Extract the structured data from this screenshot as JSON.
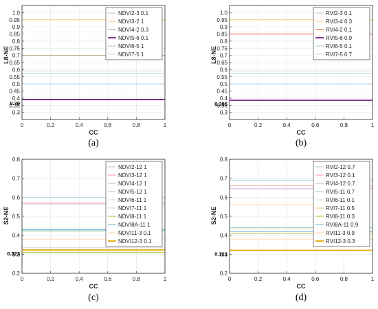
{
  "figure_captions": [
    "(a)",
    "(b)",
    "(c)",
    "(d)"
  ],
  "chart_data": [
    {
      "type": "line",
      "caption": "(a)",
      "xlabel": "CC",
      "ylabel": "L8-NE",
      "xlim": [
        0,
        1
      ],
      "ylim": [
        0.25,
        1.05
      ],
      "xticks": [
        "0",
        "0.2",
        "0.4",
        "0.6",
        "0.8",
        "1"
      ],
      "yticks": [
        "0.3",
        "0.35",
        "0.4",
        "0.45",
        "0.5",
        "0.55",
        "0.6",
        "0.65",
        "0.7",
        "0.75",
        "0.8",
        "0.85",
        "0.9",
        "0.95",
        "1.0"
      ],
      "grid": true,
      "legend_position": "top-right",
      "highlight": {
        "value": 0.39,
        "label": "0.39"
      },
      "series": [
        {
          "name": "NDVI2-3 0.1",
          "y": 0.57,
          "color": "#a6cee3"
        },
        {
          "name": "NDVI3-2 1",
          "y": 0.95,
          "color": "#fdbf6f"
        },
        {
          "name": "NDVI4-2 0.3",
          "y": 0.7,
          "color": "#b4a07a"
        },
        {
          "name": "NDVI5-6 0.1",
          "y": 0.39,
          "color": "#7a1f8c",
          "bold": true
        },
        {
          "name": "NDVI6-5 1",
          "y": 0.5,
          "color": "#9ecae1"
        },
        {
          "name": "NDVI7-5 1",
          "y": 0.59,
          "color": "#c6dbef"
        }
      ]
    },
    {
      "type": "line",
      "caption": "(b)",
      "xlabel": "CC",
      "ylabel": "L8-NE",
      "xlim": [
        0,
        1
      ],
      "ylim": [
        0.25,
        1.05
      ],
      "xticks": [
        "0",
        "0.2",
        "0.4",
        "0.6",
        "0.8",
        "1"
      ],
      "yticks": [
        "0.3",
        "0.35",
        "0.4",
        "0.45",
        "0.5",
        "0.55",
        "0.6",
        "0.65",
        "0.7",
        "0.75",
        "0.8",
        "0.85",
        "0.9",
        "0.95",
        "1.0"
      ],
      "grid": true,
      "legend_position": "top-right",
      "highlight": {
        "value": 0.385,
        "label": "0.385"
      },
      "series": [
        {
          "name": "RVI2-3 0.1",
          "y": 0.57,
          "color": "#a6cee3"
        },
        {
          "name": "RVI3-4 0.3",
          "y": 0.95,
          "color": "#fdbf6f"
        },
        {
          "name": "RVI4-2 0.1",
          "y": 0.85,
          "color": "#e6550d"
        },
        {
          "name": "RVI5-6 0.9",
          "y": 0.385,
          "color": "#7a1f8c",
          "bold": true
        },
        {
          "name": "RVI6-5 0.1",
          "y": 0.5,
          "color": "#9ecae1"
        },
        {
          "name": "RVI7-5 0.7",
          "y": 0.59,
          "color": "#c6dbef"
        }
      ]
    },
    {
      "type": "line",
      "caption": "(c)",
      "xlabel": "CC",
      "ylabel": "S2-NE",
      "xlim": [
        0,
        1
      ],
      "ylim": [
        0.2,
        0.8
      ],
      "xticks": [
        "0",
        "0.2",
        "0.4",
        "0.6",
        "0.8",
        "1"
      ],
      "yticks": [
        "0.2",
        "0.3",
        "0.4",
        "0.5",
        "0.6",
        "0.7",
        "0.8"
      ],
      "grid": true,
      "legend_position": "top-right",
      "highlight": {
        "value": 0.323,
        "label": "0.323"
      },
      "series": [
        {
          "name": "NDVI2-12 1",
          "y": 0.6,
          "color": "#a6cee3"
        },
        {
          "name": "NDVI3-12 1",
          "y": 0.57,
          "color": "#fb9a99"
        },
        {
          "name": "NDVI4-12 1",
          "y": 0.565,
          "color": "#cab2d6"
        },
        {
          "name": "NDVI5-12 1",
          "y": 0.425,
          "color": "#9ecae1"
        },
        {
          "name": "NDVI6-11 1",
          "y": 0.42,
          "color": "#c7e9c0"
        },
        {
          "name": "NDVI7-11 1",
          "y": 0.335,
          "color": "#d9d9d9"
        },
        {
          "name": "NDVI8-11 1",
          "y": 0.31,
          "color": "#bcbd22"
        },
        {
          "name": "NDVI8A-11 1",
          "y": 0.43,
          "color": "#6baed6"
        },
        {
          "name": "NDVI11-3 0.1",
          "y": 0.38,
          "color": "#fdd0a2"
        },
        {
          "name": "NDVI12-3 0.1",
          "y": 0.323,
          "color": "#e6a800",
          "bold": true
        }
      ]
    },
    {
      "type": "line",
      "caption": "(d)",
      "xlabel": "CC",
      "ylabel": "S2-NE",
      "xlim": [
        0,
        1
      ],
      "ylim": [
        0.2,
        0.8
      ],
      "xticks": [
        "0",
        "0.2",
        "0.4",
        "0.6",
        "0.8",
        "1"
      ],
      "yticks": [
        "0.2",
        "0.3",
        "0.4",
        "0.5",
        "0.6",
        "0.7",
        "0.8"
      ],
      "grid": true,
      "legend_position": "top-right",
      "highlight": {
        "value": 0.321,
        "label": "0.321"
      },
      "series": [
        {
          "name": "RVI2-12 0.7",
          "y": 0.69,
          "color": "#a6cee3"
        },
        {
          "name": "RVI3-12 0.1",
          "y": 0.66,
          "color": "#fb9a99"
        },
        {
          "name": "RVI4-12 0.7",
          "y": 0.645,
          "color": "#cab2d6"
        },
        {
          "name": "RVI5-11 0.7",
          "y": 0.44,
          "color": "#9ecae1"
        },
        {
          "name": "RVI6-11 0.1",
          "y": 0.435,
          "color": "#c7e9c0"
        },
        {
          "name": "RVI7-11 0.5",
          "y": 0.56,
          "color": "#fdbf6f"
        },
        {
          "name": "RVI8-11 0.3",
          "y": 0.41,
          "color": "#bcbd22"
        },
        {
          "name": "RVI8A-11 0.9",
          "y": 0.42,
          "color": "#6baed6"
        },
        {
          "name": "RVI11-3 0.9",
          "y": 0.38,
          "color": "#fdd0a2"
        },
        {
          "name": "RVI12-3 0.3",
          "y": 0.321,
          "color": "#e6a800",
          "bold": true
        }
      ]
    }
  ]
}
